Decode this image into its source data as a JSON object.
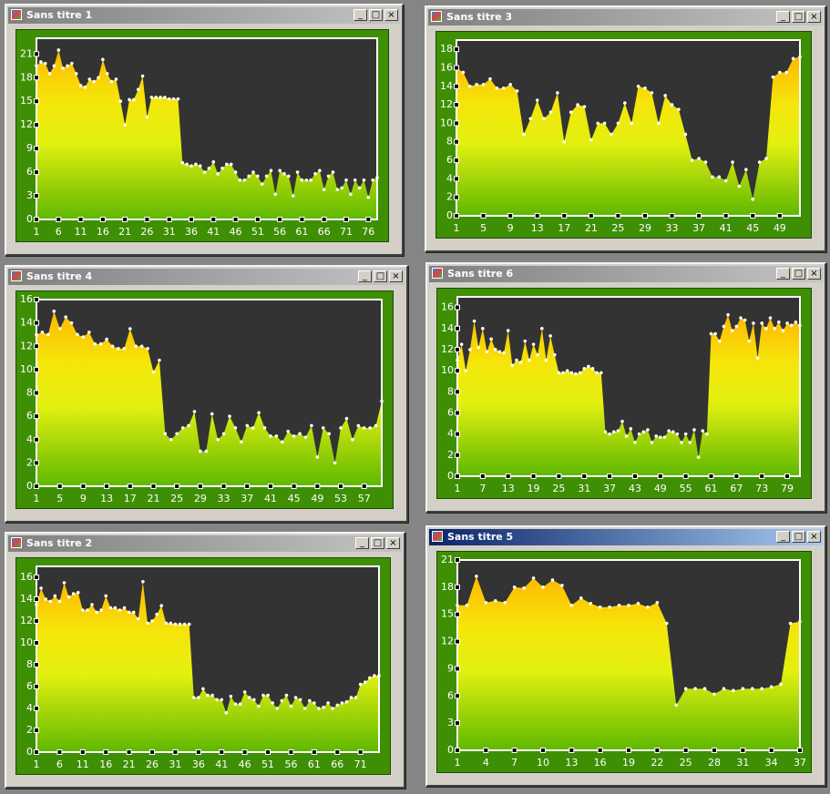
{
  "windows": [
    {
      "title": "Sans titre 1",
      "chart_data": {
        "type": "area",
        "x": [
          1,
          2,
          3,
          4,
          5,
          6,
          7,
          8,
          9,
          10,
          11,
          12,
          13,
          14,
          15,
          16,
          17,
          18,
          19,
          20,
          21,
          22,
          23,
          24,
          25,
          26,
          27,
          28,
          29,
          30,
          31,
          32,
          33,
          34,
          35,
          36,
          37,
          38,
          39,
          40,
          41,
          42,
          43,
          44,
          45,
          46,
          47,
          48,
          49,
          50,
          51,
          52,
          53,
          54,
          55,
          56,
          57,
          58,
          59,
          60,
          61,
          62,
          63,
          64,
          65,
          66,
          67,
          68,
          69,
          70,
          71,
          72,
          73,
          74,
          75,
          76,
          77,
          78
        ],
        "values": [
          19.5,
          20,
          19.8,
          18.5,
          19.5,
          21.5,
          19.2,
          19.5,
          19.8,
          18.5,
          17,
          16.8,
          17.8,
          17.5,
          18,
          20.3,
          18.5,
          17.5,
          17.8,
          15,
          12,
          15.2,
          15.2,
          16.5,
          18.2,
          13,
          15.5,
          15.5,
          15.5,
          15.5,
          15.3,
          15.3,
          15.3,
          7.2,
          7,
          6.8,
          7,
          6.8,
          6,
          6.5,
          7.3,
          5.8,
          6.5,
          7,
          7,
          6,
          5,
          5,
          5.5,
          6,
          5.5,
          4.5,
          5.5,
          6.2,
          3.2,
          6.2,
          5.8,
          5.5,
          3,
          6,
          5,
          5,
          5,
          5.8,
          6.2,
          3.8,
          5.5,
          6,
          3.8,
          4,
          5,
          3.2,
          5,
          4,
          5,
          2.8,
          5,
          5.3
        ],
        "xlim": [
          1,
          78
        ],
        "xticks": [
          1,
          6,
          11,
          16,
          21,
          26,
          31,
          36,
          41,
          46,
          51,
          56,
          61,
          66,
          71,
          76
        ],
        "ylim": [
          0,
          23
        ],
        "yticks": [
          0,
          3,
          6,
          9,
          12,
          15,
          18,
          21
        ]
      }
    },
    {
      "title": "Sans titre 3",
      "chart_data": {
        "type": "area",
        "x": [
          1,
          2,
          3,
          4,
          5,
          6,
          7,
          8,
          9,
          10,
          11,
          12,
          13,
          14,
          15,
          16,
          17,
          18,
          19,
          20,
          21,
          22,
          23,
          24,
          25,
          26,
          27,
          28,
          29,
          30,
          31,
          32,
          33,
          34,
          35,
          36,
          37,
          38,
          39,
          40,
          41,
          42,
          43,
          44,
          45,
          46,
          47,
          48,
          49,
          50,
          51,
          52
        ],
        "values": [
          16,
          15.5,
          14,
          14.2,
          14.2,
          14.8,
          13.8,
          13.8,
          14.2,
          13.5,
          8.8,
          10.5,
          12.5,
          10.5,
          11.2,
          13.3,
          8,
          11.2,
          12,
          11.8,
          8.2,
          10,
          10,
          8.8,
          10,
          12.2,
          10,
          14,
          13.8,
          13.3,
          10,
          13,
          12,
          11.5,
          8.8,
          6,
          6.2,
          5.8,
          4.2,
          4.2,
          3.8,
          5.8,
          3.2,
          5,
          1.8,
          5.8,
          6.2,
          15,
          15.5,
          15.5,
          17,
          17.2
        ],
        "xlim": [
          1,
          52
        ],
        "xticks": [
          1,
          5,
          9,
          13,
          17,
          21,
          25,
          29,
          33,
          37,
          41,
          45,
          49
        ],
        "ylim": [
          0,
          19
        ],
        "yticks": [
          0,
          2,
          4,
          6,
          8,
          10,
          12,
          14,
          16,
          18
        ]
      }
    },
    {
      "title": "Sans titre 4",
      "chart_data": {
        "type": "area",
        "x": [
          1,
          2,
          3,
          4,
          5,
          6,
          7,
          8,
          9,
          10,
          11,
          12,
          13,
          14,
          15,
          16,
          17,
          18,
          19,
          20,
          21,
          22,
          23,
          24,
          25,
          26,
          27,
          28,
          29,
          30,
          31,
          32,
          33,
          34,
          35,
          36,
          37,
          38,
          39,
          40,
          41,
          42,
          43,
          44,
          45,
          46,
          47,
          48,
          49,
          50,
          51,
          52,
          53,
          54,
          55,
          56,
          57,
          58,
          59,
          60
        ],
        "values": [
          13,
          13.2,
          13,
          15,
          13.5,
          14.5,
          14,
          13,
          12.8,
          13.2,
          12.2,
          12.2,
          12.6,
          12,
          11.8,
          11.8,
          13.5,
          12,
          12,
          11.8,
          9.8,
          10.8,
          4.5,
          4,
          4.5,
          5,
          5.2,
          6.4,
          3,
          3,
          6.2,
          4,
          4.5,
          6,
          5,
          3.8,
          5.2,
          5,
          6.3,
          5,
          4.3,
          4.3,
          3.8,
          4.7,
          4.3,
          4.5,
          4.2,
          5.2,
          2.5,
          5,
          4.5,
          2,
          5,
          5.8,
          4,
          5.2,
          5,
          5,
          5.2,
          7.3
        ],
        "xlim": [
          1,
          60
        ],
        "xticks": [
          1,
          5,
          9,
          13,
          17,
          21,
          25,
          29,
          33,
          37,
          41,
          45,
          49,
          53,
          57
        ],
        "ylim": [
          0,
          16
        ],
        "yticks": [
          0,
          2,
          4,
          6,
          8,
          10,
          12,
          14,
          16
        ]
      }
    },
    {
      "title": "Sans titre 6",
      "chart_data": {
        "type": "area",
        "x": [
          1,
          2,
          3,
          4,
          5,
          6,
          7,
          8,
          9,
          10,
          11,
          12,
          13,
          14,
          15,
          16,
          17,
          18,
          19,
          20,
          21,
          22,
          23,
          24,
          25,
          26,
          27,
          28,
          29,
          30,
          31,
          32,
          33,
          34,
          35,
          36,
          37,
          38,
          39,
          40,
          41,
          42,
          43,
          44,
          45,
          46,
          47,
          48,
          49,
          50,
          51,
          52,
          53,
          54,
          55,
          56,
          57,
          58,
          59,
          60,
          61,
          62,
          63,
          64,
          65,
          66,
          67,
          68,
          69,
          70,
          71,
          72,
          73,
          74,
          75,
          76,
          77,
          78,
          79,
          80,
          81,
          82
        ],
        "values": [
          11,
          12.5,
          10,
          12,
          14.7,
          12.2,
          14,
          11.8,
          13,
          12,
          11.8,
          11.7,
          13.8,
          10.5,
          11,
          10.8,
          12.8,
          11,
          12.5,
          11.5,
          14,
          11,
          13.3,
          11.5,
          9.8,
          9.8,
          10,
          9.8,
          9.7,
          9.8,
          10.2,
          10.4,
          10.2,
          9.8,
          9.8,
          4.2,
          4,
          4.2,
          4.3,
          5.2,
          3.8,
          4.5,
          3.2,
          4,
          4.2,
          4.4,
          3.2,
          3.8,
          3.7,
          3.7,
          4.3,
          4.2,
          4,
          3.2,
          4,
          3.2,
          4.4,
          1.8,
          4.3,
          4,
          13.5,
          13.5,
          12.8,
          14.2,
          15.3,
          13.8,
          14.2,
          15,
          14.8,
          12.8,
          14.5,
          11.2,
          14.5,
          14,
          15,
          14,
          14.6,
          13.8,
          14.5,
          14.3,
          14.6,
          14.3
        ],
        "xlim": [
          1,
          82
        ],
        "xticks": [
          1,
          7,
          13,
          19,
          25,
          31,
          37,
          43,
          49,
          55,
          61,
          67,
          73,
          79
        ],
        "ylim": [
          0,
          17
        ],
        "yticks": [
          0,
          2,
          4,
          6,
          8,
          10,
          12,
          14,
          16
        ]
      }
    },
    {
      "title": "Sans titre 2",
      "chart_data": {
        "type": "area",
        "x": [
          1,
          2,
          3,
          4,
          5,
          6,
          7,
          8,
          9,
          10,
          11,
          12,
          13,
          14,
          15,
          16,
          17,
          18,
          19,
          20,
          21,
          22,
          23,
          24,
          25,
          26,
          27,
          28,
          29,
          30,
          31,
          32,
          33,
          34,
          35,
          36,
          37,
          38,
          39,
          40,
          41,
          42,
          43,
          44,
          45,
          46,
          47,
          48,
          49,
          50,
          51,
          52,
          53,
          54,
          55,
          56,
          57,
          58,
          59,
          60,
          61,
          62,
          63,
          64,
          65,
          66,
          67,
          68,
          69,
          70,
          71,
          72,
          73,
          74,
          75
        ],
        "values": [
          13.5,
          15,
          14,
          13.8,
          14.3,
          13.8,
          15.5,
          14.2,
          14.5,
          14.6,
          13,
          13,
          13.5,
          12.8,
          13,
          14.3,
          13.2,
          13.2,
          13,
          13.2,
          12.8,
          12.8,
          12.2,
          15.6,
          11.8,
          12,
          12.6,
          13.4,
          11.8,
          11.8,
          11.7,
          11.7,
          11.7,
          11.7,
          5,
          5,
          5.8,
          5.2,
          5.2,
          4.8,
          4.8,
          3.6,
          5.1,
          4.4,
          4.4,
          5.5,
          5,
          4.8,
          4.2,
          5.2,
          5.2,
          4.5,
          4,
          4.7,
          5.2,
          4.2,
          5,
          4.8,
          4,
          4.7,
          4.5,
          4,
          4.1,
          4.5,
          4,
          4.3,
          4.5,
          4.6,
          5,
          5,
          6.2,
          6.4,
          6.8,
          7,
          7
        ],
        "xlim": [
          1,
          75
        ],
        "xticks": [
          1,
          6,
          11,
          16,
          21,
          26,
          31,
          36,
          41,
          46,
          51,
          56,
          61,
          66,
          71
        ],
        "ylim": [
          0,
          17
        ],
        "yticks": [
          0,
          2,
          4,
          6,
          8,
          10,
          12,
          14,
          16
        ]
      }
    },
    {
      "title": "Sans titre 5",
      "chart_data": {
        "type": "area",
        "x": [
          1,
          2,
          3,
          4,
          5,
          6,
          7,
          8,
          9,
          10,
          11,
          12,
          13,
          14,
          15,
          16,
          17,
          18,
          19,
          20,
          21,
          22,
          23,
          24,
          25,
          26,
          27,
          28,
          29,
          30,
          31,
          32,
          33,
          34,
          35,
          36,
          37
        ],
        "values": [
          16,
          16,
          19.2,
          16.3,
          16.5,
          16.3,
          18,
          17.9,
          19,
          18,
          18.8,
          18.2,
          16,
          16.8,
          16.2,
          15.8,
          15.8,
          16,
          16,
          16.2,
          15.8,
          16.3,
          14,
          5,
          6.8,
          6.8,
          6.8,
          6.2,
          6.8,
          6.6,
          6.8,
          6.8,
          6.8,
          7,
          7.3,
          14,
          14.2
        ],
        "xlim": [
          1,
          37
        ],
        "xticks": [
          1,
          4,
          7,
          10,
          13,
          16,
          19,
          22,
          25,
          28,
          31,
          34,
          37
        ],
        "ylim": [
          0,
          21
        ],
        "yticks": [
          0,
          3,
          6,
          9,
          12,
          15,
          18,
          21
        ]
      }
    }
  ]
}
